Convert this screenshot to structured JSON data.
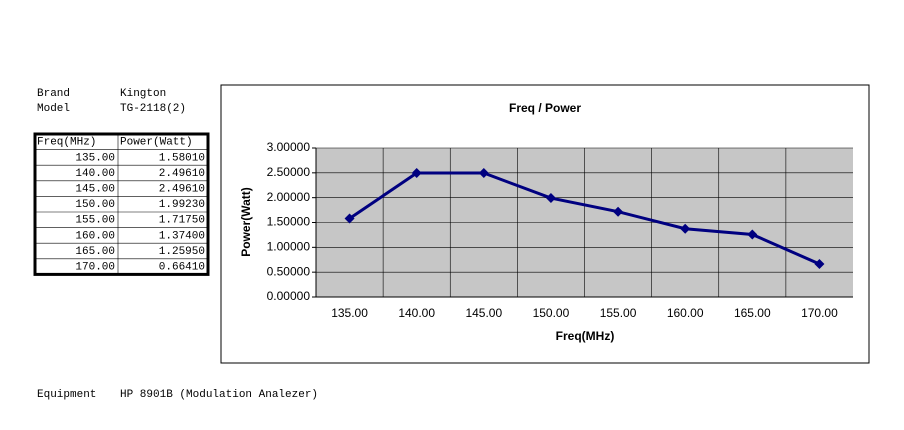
{
  "brand": {
    "label": "Brand",
    "value": "Kington"
  },
  "model": {
    "label": "Model",
    "value": "TG-2118(2)"
  },
  "table": {
    "header": [
      "Freq(MHz)",
      "Power(Watt)"
    ],
    "rows": [
      [
        "135.00",
        "1.58010"
      ],
      [
        "140.00",
        "2.49610"
      ],
      [
        "145.00",
        "2.49610"
      ],
      [
        "150.00",
        "1.99230"
      ],
      [
        "155.00",
        "1.71750"
      ],
      [
        "160.00",
        "1.37400"
      ],
      [
        "165.00",
        "1.25950"
      ],
      [
        "170.00",
        "0.66410"
      ]
    ]
  },
  "equipment": {
    "label": "Equipment",
    "value": "HP 8901B (Modulation Analezer)"
  },
  "chart_data": {
    "type": "line",
    "title": "Freq / Power",
    "x_label": "Freq(MHz)",
    "y_label": "Power(Watt)",
    "categories": [
      "135.00",
      "140.00",
      "145.00",
      "150.00",
      "155.00",
      "160.00",
      "165.00",
      "170.00"
    ],
    "series": [
      {
        "name": "Power(Watt)",
        "color": "#000080",
        "values": [
          1.5801,
          2.4961,
          2.4961,
          1.9923,
          1.7175,
          1.374,
          1.2595,
          0.6641
        ]
      }
    ],
    "ylim": [
      0,
      3
    ],
    "yticks": [
      {
        "value": 0,
        "label": "0.00000"
      },
      {
        "value": 0.5,
        "label": "0.50000"
      },
      {
        "value": 1,
        "label": "1.00000"
      },
      {
        "value": 1.5,
        "label": "1.50000"
      },
      {
        "value": 2,
        "label": "2.00000"
      },
      {
        "value": 2.5,
        "label": "2.50000"
      },
      {
        "value": 3,
        "label": "3.00000"
      }
    ],
    "grid": true
  }
}
